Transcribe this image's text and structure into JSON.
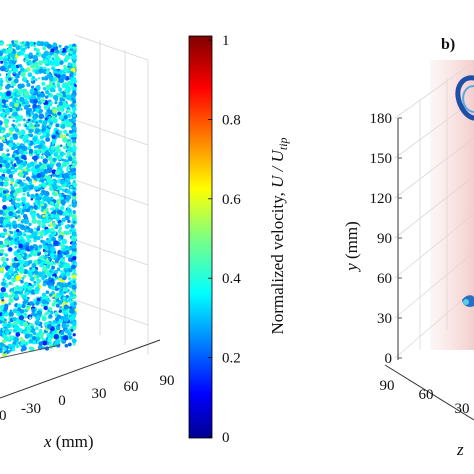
{
  "chart_data": [
    {
      "type": "scatter",
      "panel": "a",
      "xlabel_prefix": "x",
      "xlabel_unit": " (mm)",
      "x_ticks": [
        "-30",
        "0",
        "30",
        "60",
        "90"
      ],
      "x_tick_partial": "0",
      "colorbar": {
        "label_main": "Normalized velocity, ",
        "label_var": "U / U",
        "label_sub": "tip",
        "ticks": [
          "0",
          "0.2",
          "0.4",
          "0.6",
          "0.8",
          "1"
        ],
        "range": [
          0,
          1
        ],
        "colormap": "jet"
      },
      "dominant_value_range": [
        0.25,
        0.45
      ]
    },
    {
      "type": "scatter",
      "panel": "b",
      "panel_label": "b)",
      "ylabel_prefix": "y",
      "ylabel_unit": " (mm)",
      "y_ticks": [
        "180",
        "150",
        "120",
        "90",
        "60",
        "30",
        "0"
      ],
      "ylim": [
        0,
        180
      ],
      "x_ticks": [
        "90",
        "60",
        "30"
      ],
      "zlabel_partial": "z"
    }
  ]
}
